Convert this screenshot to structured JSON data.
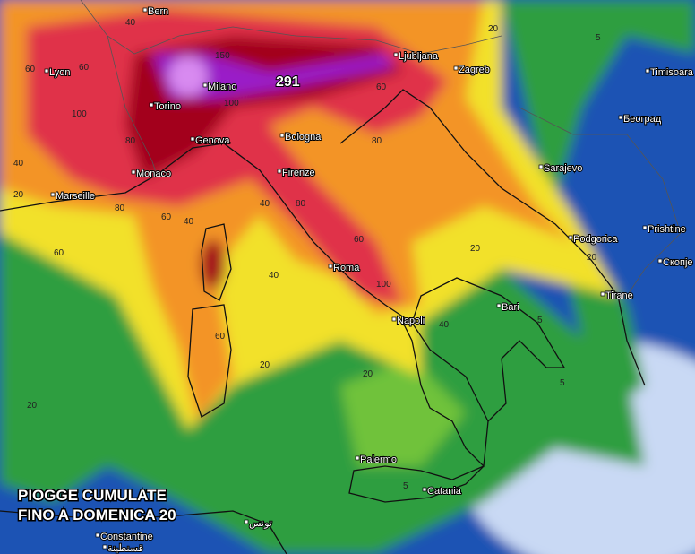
{
  "title": [
    "PIOGGE CUMULATE",
    "FINO A DOMENICA 20"
  ],
  "max_value": "291",
  "cities": [
    "Bern",
    "Lyon",
    "Milano",
    "Torino",
    "Genova",
    "Monaco",
    "Marseille",
    "Bologna",
    "Firenze",
    "Roma",
    "Napoli",
    "Bari",
    "Palermo",
    "Catania",
    "Constantine",
    "قسنطينة",
    "تونس",
    "Ljubljana",
    "Zagreb",
    "Sarajevo",
    "Podgorica",
    "Tirane",
    "Timisoara",
    "Београд",
    "Prishtine",
    "Скопје"
  ],
  "contour_labels": [
    "40",
    "60",
    "60",
    "100",
    "80",
    "150",
    "100",
    "80",
    "60",
    "40",
    "20",
    "40",
    "60",
    "80",
    "100",
    "60",
    "80",
    "60",
    "40",
    "20",
    "40",
    "20",
    "5",
    "5",
    "5",
    "20",
    "20",
    "40",
    "60",
    "20",
    "5",
    "20"
  ]
}
